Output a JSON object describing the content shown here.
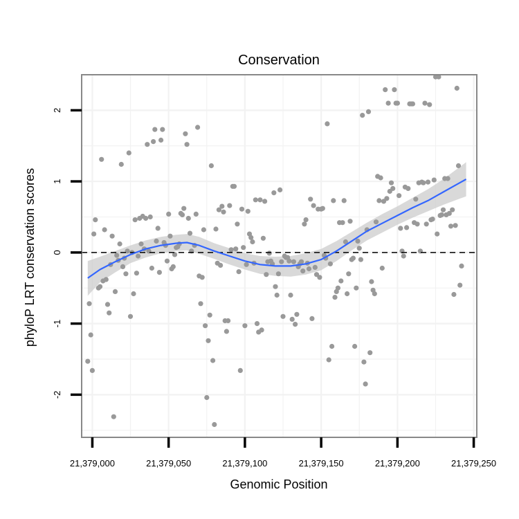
{
  "chart_data": {
    "type": "scatter",
    "title": "Conservation",
    "xlabel": "Genomic Position",
    "ylabel": "phyloP LRT conservation scores",
    "xlim": [
      21378993,
      21379252
    ],
    "ylim": [
      -2.6,
      2.5
    ],
    "x_ticks": [
      21379000,
      21379050,
      21379100,
      21379150,
      21379200,
      21379250
    ],
    "x_tick_labels": [
      "21,379,000",
      "21,379,050",
      "21,379,100",
      "21,379,150",
      "21,379,200",
      "21,379,250"
    ],
    "y_ticks": [
      -2,
      -1,
      0,
      1,
      2
    ],
    "y_tick_labels": [
      "-2",
      "-1",
      "0",
      "1",
      "2"
    ],
    "grid": true,
    "reference_line": {
      "y": 0,
      "style": "dashed",
      "color": "#000000"
    },
    "series": [
      {
        "kind": "points",
        "color": "#999999",
        "points": [
          [
            21378997,
            -1.53
          ],
          [
            21378998,
            -0.72
          ],
          [
            21378999,
            -1.16
          ],
          [
            21379000,
            -1.66
          ],
          [
            21379001,
            0.26
          ],
          [
            21379002,
            0.46
          ],
          [
            21379004,
            -0.5
          ],
          [
            21379005,
            -0.48
          ],
          [
            21379006,
            1.31
          ],
          [
            21379007,
            -0.4
          ],
          [
            21379008,
            0.32
          ],
          [
            21379009,
            -0.38
          ],
          [
            21379010,
            -0.73
          ],
          [
            21379011,
            -0.85
          ],
          [
            21379012,
            -0.17
          ],
          [
            21379013,
            0.23
          ],
          [
            21379014,
            -2.31
          ],
          [
            21379015,
            -0.55
          ],
          [
            21379016,
            -0.04
          ],
          [
            21379017,
            -0.11
          ],
          [
            21379018,
            0.12
          ],
          [
            21379019,
            1.24
          ],
          [
            21379020,
            -0.2
          ],
          [
            21379021,
            -0.08
          ],
          [
            21379022,
            -0.3
          ],
          [
            21379023,
            0.02
          ],
          [
            21379024,
            1.4
          ],
          [
            21379025,
            -0.9
          ],
          [
            21379026,
            0.0
          ],
          [
            21379027,
            -0.58
          ],
          [
            21379028,
            0.46
          ],
          [
            21379029,
            -0.29
          ],
          [
            21379030,
            -0.05
          ],
          [
            21379031,
            0.48
          ],
          [
            21379032,
            0.12
          ],
          [
            21379033,
            0.51
          ],
          [
            21379034,
            0.05
          ],
          [
            21379035,
            0.48
          ],
          [
            21379036,
            1.52
          ],
          [
            21379037,
            0.02
          ],
          [
            21379038,
            0.5
          ],
          [
            21379039,
            -0.22
          ],
          [
            21379040,
            1.56
          ],
          [
            21379041,
            1.73
          ],
          [
            21379042,
            0.16
          ],
          [
            21379043,
            0.34
          ],
          [
            21379044,
            -0.28
          ],
          [
            21379045,
            1.58
          ],
          [
            21379046,
            1.73
          ],
          [
            21379047,
            0.14
          ],
          [
            21379048,
            0.1
          ],
          [
            21379049,
            -0.12
          ],
          [
            21379050,
            0.54
          ],
          [
            21379051,
            0.23
          ],
          [
            21379052,
            -0.23
          ],
          [
            21379053,
            -0.2
          ],
          [
            21379054,
            -0.03
          ],
          [
            21379055,
            0.07
          ],
          [
            21379056,
            0.08
          ],
          [
            21379057,
            0.12
          ],
          [
            21379058,
            0.55
          ],
          [
            21379059,
            0.53
          ],
          [
            21379060,
            0.62
          ],
          [
            21379061,
            1.67
          ],
          [
            21379062,
            1.52
          ],
          [
            21379063,
            0.48
          ],
          [
            21379064,
            0.27
          ],
          [
            21379065,
            0.02
          ],
          [
            21379067,
            0.1
          ],
          [
            21379068,
            0.54
          ],
          [
            21379069,
            1.76
          ],
          [
            21379070,
            -0.33
          ],
          [
            21379071,
            -0.72
          ],
          [
            21379072,
            -0.35
          ],
          [
            21379073,
            0.32
          ],
          [
            21379074,
            -1.03
          ],
          [
            21379075,
            -2.04
          ],
          [
            21379076,
            -1.24
          ],
          [
            21379077,
            -0.88
          ],
          [
            21379078,
            1.22
          ],
          [
            21379079,
            -1.52
          ],
          [
            21379080,
            -2.42
          ],
          [
            21379081,
            0.33
          ],
          [
            21379082,
            -0.15
          ],
          [
            21379083,
            0.6
          ],
          [
            21379084,
            -0.18
          ],
          [
            21379085,
            0.65
          ],
          [
            21379086,
            0.57
          ],
          [
            21379087,
            -0.96
          ],
          [
            21379088,
            -1.11
          ],
          [
            21379089,
            -0.96
          ],
          [
            21379090,
            0.66
          ],
          [
            21379091,
            0.04
          ],
          [
            21379092,
            0.93
          ],
          [
            21379093,
            0.93
          ],
          [
            21379094,
            0.05
          ],
          [
            21379095,
            0.4
          ],
          [
            21379096,
            -0.27
          ],
          [
            21379097,
            -1.66
          ],
          [
            21379098,
            0.61
          ],
          [
            21379099,
            0.07
          ],
          [
            21379100,
            -1.03
          ],
          [
            21379101,
            -0.17
          ],
          [
            21379102,
            0.58
          ],
          [
            21379103,
            0.26
          ],
          [
            21379104,
            0.21
          ],
          [
            21379105,
            0.15
          ],
          [
            21379106,
            -0.15
          ],
          [
            21379107,
            0.74
          ],
          [
            21379108,
            -1.0
          ],
          [
            21379109,
            -1.12
          ],
          [
            21379110,
            0.74
          ],
          [
            21379111,
            -1.09
          ],
          [
            21379112,
            0.2
          ],
          [
            21379113,
            0.72
          ],
          [
            21379114,
            -0.31
          ],
          [
            21379115,
            -0.13
          ],
          [
            21379116,
            -0.01
          ],
          [
            21379117,
            -0.12
          ],
          [
            21379118,
            -0.16
          ],
          [
            21379119,
            0.84
          ],
          [
            21379120,
            -0.48
          ],
          [
            21379121,
            -0.6
          ],
          [
            21379122,
            -0.3
          ],
          [
            21379123,
            0.88
          ],
          [
            21379124,
            -0.13
          ],
          [
            21379125,
            -0.9
          ],
          [
            21379126,
            -0.05
          ],
          [
            21379127,
            -0.07
          ],
          [
            21379128,
            -0.07
          ],
          [
            21379129,
            -0.12
          ],
          [
            21379130,
            -0.6
          ],
          [
            21379131,
            -0.94
          ],
          [
            21379132,
            -0.13
          ],
          [
            21379133,
            -1.01
          ],
          [
            21379134,
            -0.87
          ],
          [
            21379135,
            -0.2
          ],
          [
            21379136,
            -0.16
          ],
          [
            21379137,
            -0.13
          ],
          [
            21379138,
            -0.26
          ],
          [
            21379139,
            0.4
          ],
          [
            21379140,
            0.46
          ],
          [
            21379141,
            -0.15
          ],
          [
            21379142,
            -0.23
          ],
          [
            21379143,
            0.75
          ],
          [
            21379144,
            -0.93
          ],
          [
            21379145,
            0.66
          ],
          [
            21379146,
            -0.21
          ],
          [
            21379147,
            -0.31
          ],
          [
            21379148,
            0.61
          ],
          [
            21379149,
            -0.35
          ],
          [
            21379150,
            0.61
          ],
          [
            21379151,
            0.62
          ],
          [
            21379152,
            -0.04
          ],
          [
            21379153,
            -0.08
          ],
          [
            21379154,
            1.81
          ],
          [
            21379155,
            -1.51
          ],
          [
            21379156,
            -0.16
          ],
          [
            21379157,
            -1.32
          ],
          [
            21379158,
            0.73
          ],
          [
            21379159,
            -0.63
          ],
          [
            21379160,
            -0.55
          ],
          [
            21379161,
            -0.5
          ],
          [
            21379162,
            0.42
          ],
          [
            21379163,
            -0.4
          ],
          [
            21379164,
            0.42
          ],
          [
            21379165,
            0.73
          ],
          [
            21379166,
            0.15
          ],
          [
            21379167,
            -0.58
          ],
          [
            21379168,
            -0.3
          ],
          [
            21379169,
            0.44
          ],
          [
            21379170,
            -0.1
          ],
          [
            21379171,
            -0.08
          ],
          [
            21379172,
            -1.32
          ],
          [
            21379173,
            -0.5
          ],
          [
            21379174,
            0.16
          ],
          [
            21379175,
            0.06
          ],
          [
            21379176,
            -0.1
          ],
          [
            21379177,
            1.93
          ],
          [
            21379178,
            -1.54
          ],
          [
            21379179,
            -1.85
          ],
          [
            21379180,
            0.32
          ],
          [
            21379181,
            1.98
          ],
          [
            21379182,
            -1.41
          ],
          [
            21379183,
            -0.41
          ],
          [
            21379184,
            -0.53
          ],
          [
            21379185,
            -0.58
          ],
          [
            21379186,
            0.43
          ],
          [
            21379187,
            1.07
          ],
          [
            21379188,
            0.73
          ],
          [
            21379189,
            1.05
          ],
          [
            21379190,
            -0.22
          ],
          [
            21379191,
            0.72
          ],
          [
            21379192,
            2.29
          ],
          [
            21379193,
            0.76
          ],
          [
            21379194,
            2.1
          ],
          [
            21379195,
            0.86
          ],
          [
            21379196,
            0.98
          ],
          [
            21379197,
            0.9
          ],
          [
            21379198,
            2.29
          ],
          [
            21379199,
            2.1
          ],
          [
            21379200,
            2.1
          ],
          [
            21379201,
            0.8
          ],
          [
            21379202,
            0.34
          ],
          [
            21379203,
            0.02
          ],
          [
            21379204,
            -0.05
          ],
          [
            21379205,
            0.92
          ],
          [
            21379206,
            0.35
          ],
          [
            21379207,
            0.9
          ],
          [
            21379208,
            2.09
          ],
          [
            21379209,
            2.09
          ],
          [
            21379210,
            2.09
          ],
          [
            21379211,
            0.42
          ],
          [
            21379212,
            0.75
          ],
          [
            21379213,
            0.4
          ],
          [
            21379214,
            0.98
          ],
          [
            21379215,
            0.02
          ],
          [
            21379216,
            0.99
          ],
          [
            21379217,
            0.98
          ],
          [
            21379218,
            2.1
          ],
          [
            21379219,
            0.4
          ],
          [
            21379220,
            0.99
          ],
          [
            21379221,
            2.08
          ],
          [
            21379222,
            0.46
          ],
          [
            21379223,
            0.47
          ],
          [
            21379224,
            1.02
          ],
          [
            21379225,
            2.47
          ],
          [
            21379226,
            0.26
          ],
          [
            21379227,
            2.47
          ],
          [
            21379228,
            0.52
          ],
          [
            21379229,
            0.53
          ],
          [
            21379230,
            0.6
          ],
          [
            21379231,
            1.04
          ],
          [
            21379232,
            0.53
          ],
          [
            21379233,
            1.04
          ],
          [
            21379234,
            0.55
          ],
          [
            21379235,
            0.37
          ],
          [
            21379236,
            0.6
          ],
          [
            21379237,
            -0.59
          ],
          [
            21379238,
            0.38
          ],
          [
            21379239,
            2.31
          ],
          [
            21379240,
            1.22
          ],
          [
            21379241,
            -0.46
          ],
          [
            21379242,
            -0.19
          ]
        ]
      },
      {
        "kind": "smooth",
        "color": "#3366ff",
        "band_color": "#cccccc",
        "x": [
          21378997,
          21379005,
          21379015,
          21379025,
          21379035,
          21379045,
          21379055,
          21379062,
          21379070,
          21379080,
          21379090,
          21379100,
          21379110,
          21379120,
          21379130,
          21379140,
          21379150,
          21379160,
          21379170,
          21379180,
          21379190,
          21379200,
          21379210,
          21379220,
          21379230,
          21379240,
          21379245
        ],
        "y": [
          -0.36,
          -0.24,
          -0.13,
          -0.03,
          0.05,
          0.1,
          0.13,
          0.14,
          0.1,
          0.02,
          -0.05,
          -0.12,
          -0.17,
          -0.19,
          -0.19,
          -0.16,
          -0.1,
          0.02,
          0.16,
          0.3,
          0.41,
          0.52,
          0.63,
          0.73,
          0.85,
          0.97,
          1.03
        ],
        "ymin": [
          -0.61,
          -0.42,
          -0.28,
          -0.15,
          -0.07,
          -0.01,
          0.02,
          0.03,
          -0.02,
          -0.09,
          -0.17,
          -0.24,
          -0.3,
          -0.33,
          -0.34,
          -0.31,
          -0.25,
          -0.12,
          0.03,
          0.17,
          0.28,
          0.39,
          0.49,
          0.58,
          0.67,
          0.75,
          0.79
        ],
        "ymax": [
          -0.12,
          -0.06,
          0.02,
          0.1,
          0.17,
          0.22,
          0.25,
          0.26,
          0.22,
          0.13,
          0.06,
          -0.01,
          -0.05,
          -0.06,
          -0.05,
          -0.01,
          0.05,
          0.16,
          0.29,
          0.42,
          0.54,
          0.65,
          0.77,
          0.89,
          1.03,
          1.19,
          1.27
        ]
      }
    ]
  }
}
